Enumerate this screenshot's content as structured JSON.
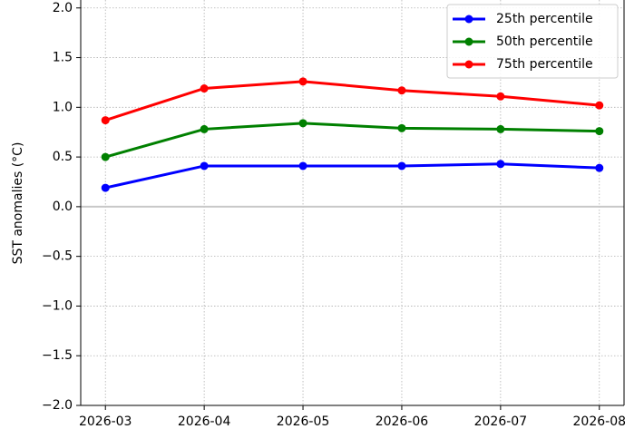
{
  "chart_data": {
    "type": "line",
    "y_label": "SST anomalies (°C)",
    "categories": [
      "2026-03",
      "2026-04",
      "2026-05",
      "2026-06",
      "2026-07",
      "2026-08"
    ],
    "series": [
      {
        "name": "25th percentile",
        "color": "#0000ff",
        "values": [
          0.19,
          0.41,
          0.41,
          0.41,
          0.43,
          0.39
        ]
      },
      {
        "name": "50th percentile",
        "color": "#008000",
        "values": [
          0.5,
          0.78,
          0.84,
          0.79,
          0.78,
          0.76
        ]
      },
      {
        "name": "75th percentile",
        "color": "#ff0000",
        "values": [
          0.87,
          1.19,
          1.26,
          1.17,
          1.11,
          1.02
        ]
      }
    ],
    "ylim": [
      -2,
      2.08
    ],
    "yticks": [
      {
        "value": -2,
        "label": "−2.0"
      },
      {
        "value": -1.5,
        "label": "−1.5"
      },
      {
        "value": -1,
        "label": "−1.0"
      },
      {
        "value": -0.5,
        "label": "−0.5"
      },
      {
        "value": 0,
        "label": "0.0"
      },
      {
        "value": 0.5,
        "label": "0.5"
      },
      {
        "value": 1,
        "label": "1.0"
      },
      {
        "value": 1.5,
        "label": "1.5"
      },
      {
        "value": 2,
        "label": "2.0"
      }
    ],
    "grid": true,
    "legend": "upper right"
  }
}
